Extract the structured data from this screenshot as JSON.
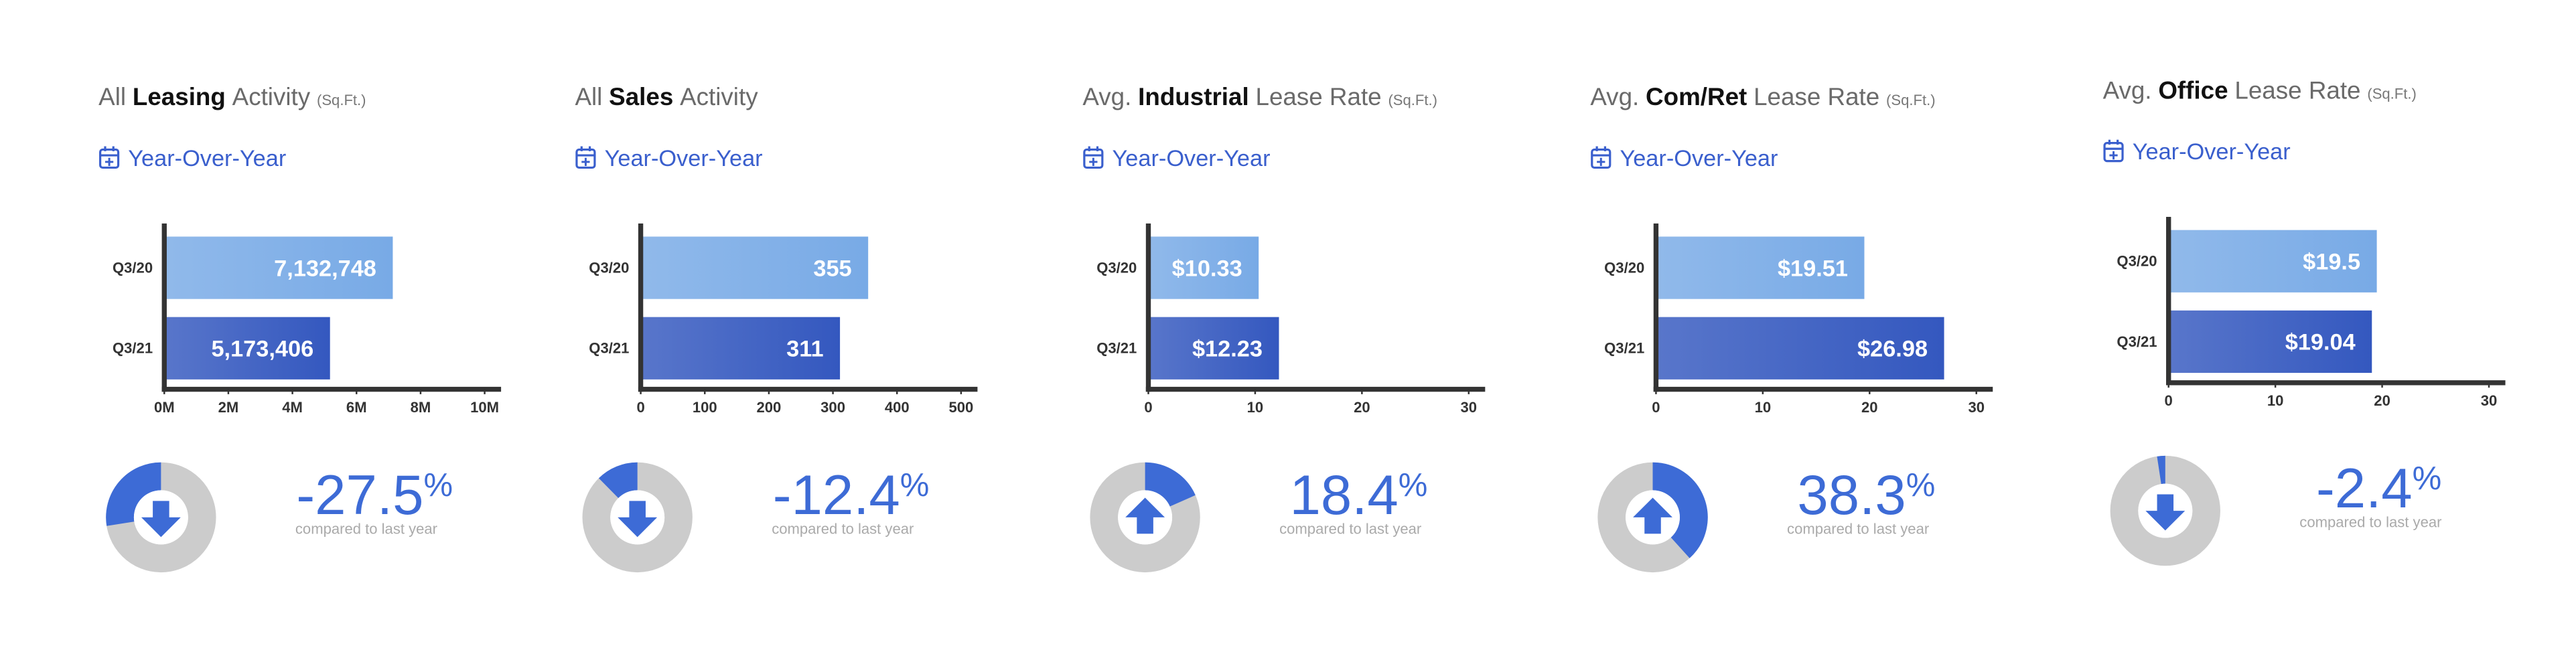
{
  "chart_data": [
    {
      "type": "bar",
      "title": {
        "lead": "All",
        "bold": "Leasing",
        "tail": "Activity",
        "unit": "(Sq.Ft.)"
      },
      "link": "Year-Over-Year",
      "categories": [
        "Q3/20",
        "Q3/21"
      ],
      "values": [
        7132748,
        5173406
      ],
      "value_labels": [
        "7,132,748",
        "5,173,406"
      ],
      "colors": [
        "#78aae6",
        "#3458bf"
      ],
      "xlim": [
        0,
        10000000
      ],
      "xticks": [
        {
          "value": 0,
          "label": "0M"
        },
        {
          "value": 2000000,
          "label": "2M"
        },
        {
          "value": 4000000,
          "label": "4M"
        },
        {
          "value": 6000000,
          "label": "6M"
        },
        {
          "value": 8000000,
          "label": "8M"
        },
        {
          "value": 10000000,
          "label": "10M"
        }
      ],
      "change": {
        "value": -27.5,
        "unit": "%",
        "note": "compared to last year",
        "color": "#3d6bd6",
        "track": "#cccccc"
      }
    },
    {
      "type": "bar",
      "title": {
        "lead": "All",
        "bold": "Sales",
        "tail": "Activity"
      },
      "link": "Year-Over-Year",
      "categories": [
        "Q3/20",
        "Q3/21"
      ],
      "values": [
        355,
        311
      ],
      "colors": [
        "#78aae6",
        "#3458bf"
      ],
      "xlim": [
        0,
        500
      ],
      "xticks": [
        0,
        100,
        200,
        300,
        400,
        500
      ],
      "change": {
        "value": -12.4,
        "unit": "%",
        "note": "compared to last year",
        "color": "#3d6bd6",
        "track": "#cccccc"
      }
    },
    {
      "type": "bar",
      "title": {
        "lead": "Avg.",
        "bold": "Industrial",
        "tail": "Lease Rate",
        "unit": "(Sq.Ft.)"
      },
      "link": "Year-Over-Year",
      "categories": [
        "Q3/20",
        "Q3/21"
      ],
      "values": [
        10.33,
        12.23
      ],
      "value_labels": [
        "$10.33",
        "$12.23"
      ],
      "colors": [
        "#78aae6",
        "#3458bf"
      ],
      "xlim": [
        0,
        30
      ],
      "xticks": [
        0,
        10,
        20,
        30
      ],
      "change": {
        "value": 18.4,
        "unit": "%",
        "note": "compared to last year",
        "color": "#3d6bd6",
        "track": "#cccccc"
      }
    },
    {
      "type": "bar",
      "title": {
        "lead": "Avg.",
        "bold": "Com/Ret",
        "tail": "Lease Rate",
        "unit": "(Sq.Ft.)"
      },
      "link": "Year-Over-Year",
      "categories": [
        "Q3/20",
        "Q3/21"
      ],
      "values": [
        19.51,
        26.98
      ],
      "value_labels": [
        "$19.51",
        "$26.98"
      ],
      "colors": [
        "#78aae6",
        "#3458bf"
      ],
      "xlim": [
        0,
        30
      ],
      "xticks": [
        0,
        10,
        20,
        30
      ],
      "change": {
        "value": 38.3,
        "unit": "%",
        "note": "compared to last year",
        "color": "#3d6bd6",
        "track": "#cccccc"
      }
    },
    {
      "type": "bar",
      "title": {
        "lead": "Avg.",
        "bold": "Office",
        "tail": "Lease Rate",
        "unit": "(Sq.Ft.)"
      },
      "link": "Year-Over-Year",
      "categories": [
        "Q3/20",
        "Q3/21"
      ],
      "values": [
        19.5,
        19.04
      ],
      "value_labels": [
        "$19.5",
        "$19.04"
      ],
      "colors": [
        "#78aae6",
        "#3458bf"
      ],
      "xlim": [
        0,
        30
      ],
      "xticks": [
        0,
        10,
        20,
        30
      ],
      "change": {
        "value": -2.4,
        "unit": "%",
        "note": "compared to last year",
        "color": "#3d6bd6",
        "track": "#cccccc"
      }
    }
  ]
}
